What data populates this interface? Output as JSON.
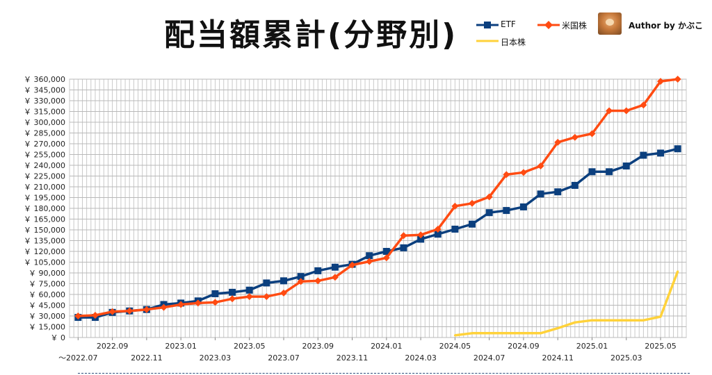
{
  "chart_data": {
    "type": "line",
    "title": "配当額累計(分野別)",
    "author": "Author by かぶこ",
    "ylim": [
      0,
      360000
    ],
    "y_step": 15000,
    "y_tick_prefix": "￥",
    "grid": true,
    "legend_position": "top-right",
    "x": [
      "2022.07",
      "2022.08",
      "2022.09",
      "2022.10",
      "2022.11",
      "2022.12",
      "2023.01",
      "2023.02",
      "2023.03",
      "2023.04",
      "2023.05",
      "2023.06",
      "2023.07",
      "2023.08",
      "2023.09",
      "2023.10",
      "2023.11",
      "2023.12",
      "2024.01",
      "2024.02",
      "2024.03",
      "2024.04",
      "2024.05",
      "2024.06",
      "2024.07",
      "2024.08",
      "2024.09",
      "2024.10",
      "2024.11",
      "2024.12",
      "2025.01",
      "2025.02",
      "2025.03",
      "2025.04",
      "2025.05",
      "2025.06"
    ],
    "x_tick_labels": [
      {
        "label": "～2022.07",
        "index": 0,
        "row": 1
      },
      {
        "label": "2022.09",
        "index": 2,
        "row": 0
      },
      {
        "label": "2022.11",
        "index": 4,
        "row": 1
      },
      {
        "label": "2023.01",
        "index": 6,
        "row": 0
      },
      {
        "label": "2023.03",
        "index": 8,
        "row": 1
      },
      {
        "label": "2023.05",
        "index": 10,
        "row": 0
      },
      {
        "label": "2023.07",
        "index": 12,
        "row": 1
      },
      {
        "label": "2023.09",
        "index": 14,
        "row": 0
      },
      {
        "label": "2023.11",
        "index": 16,
        "row": 1
      },
      {
        "label": "2024.01",
        "index": 18,
        "row": 0
      },
      {
        "label": "2024.03",
        "index": 20,
        "row": 1
      },
      {
        "label": "2024.05",
        "index": 22,
        "row": 0
      },
      {
        "label": "2024.07",
        "index": 24,
        "row": 1
      },
      {
        "label": "2024.09",
        "index": 26,
        "row": 0
      },
      {
        "label": "2024.11",
        "index": 28,
        "row": 1
      },
      {
        "label": "2025.01",
        "index": 30,
        "row": 0
      },
      {
        "label": "2025.03",
        "index": 32,
        "row": 1
      },
      {
        "label": "2025.05",
        "index": 34,
        "row": 0
      }
    ],
    "series": [
      {
        "name": "ETF",
        "color": "#0b3f7e",
        "marker": "square",
        "values": [
          28000,
          28000,
          35000,
          37000,
          39000,
          46000,
          48000,
          51000,
          61000,
          63000,
          66000,
          76000,
          79000,
          85000,
          93000,
          98000,
          102000,
          114000,
          120000,
          125000,
          137000,
          144000,
          151000,
          158000,
          174000,
          177000,
          182000,
          200000,
          203000,
          212000,
          231000,
          231000,
          239000,
          254000,
          257000,
          263000
        ]
      },
      {
        "name": "米国株",
        "color": "#ff4b12",
        "marker": "diamond",
        "values": [
          30000,
          31000,
          36000,
          37000,
          39000,
          42000,
          46000,
          48000,
          49000,
          54000,
          57000,
          57000,
          62000,
          78000,
          79000,
          84000,
          101000,
          106000,
          111000,
          142000,
          143000,
          151000,
          183000,
          187000,
          196000,
          227000,
          230000,
          239000,
          272000,
          279000,
          284000,
          316000,
          316000,
          324000,
          357000,
          360000
        ]
      },
      {
        "name": "日本株",
        "color": "#ffd23a",
        "marker": "none",
        "values": [
          null,
          null,
          null,
          null,
          null,
          null,
          null,
          null,
          null,
          null,
          null,
          null,
          null,
          null,
          null,
          null,
          null,
          null,
          null,
          null,
          null,
          null,
          3000,
          6000,
          6000,
          6000,
          6000,
          6000,
          13000,
          21000,
          24000,
          24000,
          24000,
          24000,
          29000,
          92000
        ]
      }
    ]
  }
}
